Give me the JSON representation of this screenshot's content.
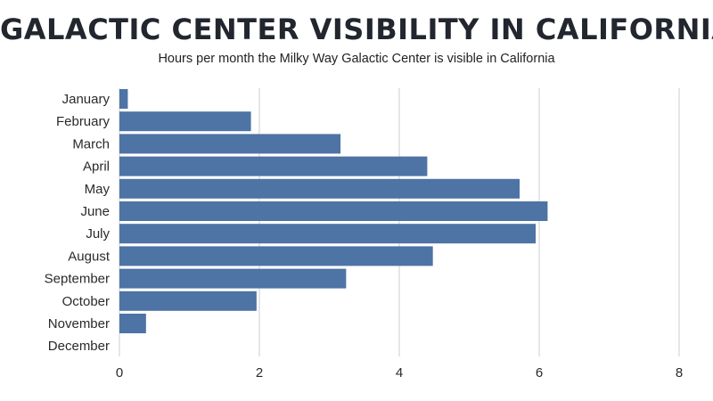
{
  "chart_data": {
    "type": "bar",
    "orientation": "horizontal",
    "title": "GALACTIC CENTER VISIBILITY IN CALIFORNIA",
    "subtitle": "Hours per month the Milky Way Galactic Center is visible in California",
    "xlabel": "",
    "ylabel": "",
    "categories": [
      "January",
      "February",
      "March",
      "April",
      "May",
      "June",
      "July",
      "August",
      "September",
      "October",
      "November",
      "December"
    ],
    "values": [
      0.12,
      1.88,
      3.16,
      4.4,
      5.72,
      6.12,
      5.95,
      4.48,
      3.24,
      1.96,
      0.38,
      0
    ],
    "xlim": [
      0,
      8
    ],
    "xticks": [
      "0",
      "2",
      "4",
      "6",
      "8"
    ],
    "grid": true,
    "bar_color": "#4e73a5",
    "grid_color": "#dddddd"
  }
}
